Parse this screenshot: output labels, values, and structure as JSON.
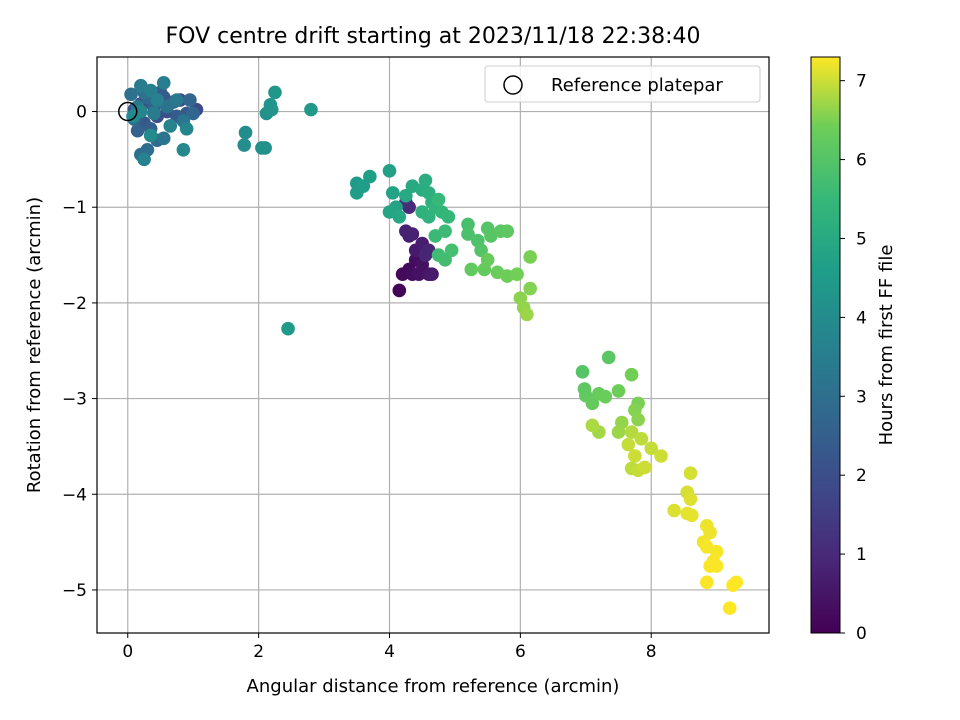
{
  "chart_data": {
    "type": "scatter",
    "title": "FOV centre drift starting at 2023/11/18 22:38:40",
    "xlabel": "Angular distance from reference (arcmin)",
    "ylabel": "Rotation from reference (arcmin)",
    "xlim": [
      -0.47,
      9.8
    ],
    "ylim": [
      -5.45,
      0.57
    ],
    "x_ticks": [
      0,
      2,
      4,
      6,
      8
    ],
    "y_ticks": [
      0,
      -1,
      -2,
      -3,
      -4,
      -5
    ],
    "x_tick_labels": [
      "0",
      "2",
      "4",
      "6",
      "8"
    ],
    "y_tick_labels": [
      "0",
      "−1",
      "−2",
      "−3",
      "−4",
      "−5"
    ],
    "grid": true,
    "legend": {
      "position": "top-right",
      "entries": [
        "Reference platepar"
      ]
    },
    "reference_point": {
      "x": 0,
      "y": 0
    },
    "colorbar": {
      "label": "Hours from first FF file",
      "range": [
        0,
        7.3
      ],
      "ticks": [
        0,
        1,
        2,
        3,
        4,
        5,
        6,
        7
      ],
      "tick_labels": [
        "0",
        "1",
        "2",
        "3",
        "4",
        "5",
        "6",
        "7"
      ],
      "colormap": "viridis"
    },
    "points": [
      [
        4.15,
        -1.87,
        0.1
      ],
      [
        4.2,
        -1.7,
        0.2
      ],
      [
        4.3,
        -1.65,
        0.2
      ],
      [
        4.35,
        -1.7,
        0.3
      ],
      [
        4.4,
        -1.55,
        0.3
      ],
      [
        4.45,
        -1.7,
        0.4
      ],
      [
        4.5,
        -1.6,
        0.4
      ],
      [
        4.55,
        -1.5,
        0.5
      ],
      [
        4.6,
        -1.7,
        0.5
      ],
      [
        4.65,
        -1.7,
        0.6
      ],
      [
        4.4,
        -1.45,
        0.6
      ],
      [
        4.5,
        -1.38,
        0.7
      ],
      [
        4.3,
        -1.3,
        0.7
      ],
      [
        4.25,
        -1.25,
        0.8
      ],
      [
        4.35,
        -1.28,
        0.8
      ],
      [
        4.55,
        -1.5,
        0.9
      ],
      [
        4.6,
        -1.45,
        0.9
      ],
      [
        4.3,
        -1.0,
        1.0
      ],
      [
        4.25,
        -0.95,
        1.1
      ],
      [
        0.8,
        0.12,
        1.8
      ],
      [
        1.05,
        0.02,
        1.9
      ],
      [
        0.6,
        0.0,
        2.0
      ],
      [
        0.45,
        -0.05,
        2.05
      ],
      [
        0.3,
        0.1,
        2.1
      ],
      [
        0.2,
        0.08,
        2.15
      ],
      [
        0.1,
        0.02,
        2.2
      ],
      [
        0.25,
        -0.12,
        2.25
      ],
      [
        0.55,
        0.15,
        2.3
      ],
      [
        0.9,
        -0.02,
        2.35
      ],
      [
        0.75,
        -0.05,
        2.4
      ],
      [
        0.5,
        0.2,
        2.45
      ],
      [
        0.35,
        -0.18,
        2.5
      ],
      [
        0.15,
        -0.2,
        2.55
      ],
      [
        0.4,
        0.05,
        2.6
      ],
      [
        0.7,
        0.1,
        2.65
      ],
      [
        0.95,
        0.12,
        2.7
      ],
      [
        1.0,
        -0.02,
        2.75
      ],
      [
        0.3,
        0.15,
        2.8
      ],
      [
        0.1,
        -0.08,
        2.85
      ],
      [
        0.45,
        -0.3,
        2.9
      ],
      [
        0.3,
        -0.4,
        2.95
      ],
      [
        0.2,
        -0.45,
        3.0
      ],
      [
        0.05,
        0.18,
        3.05
      ],
      [
        0.25,
        0.2,
        3.1
      ],
      [
        0.6,
        0.05,
        3.15
      ],
      [
        0.55,
        -0.28,
        3.2
      ],
      [
        0.85,
        -0.1,
        3.25
      ],
      [
        0.75,
        0.12,
        3.3
      ],
      [
        0.15,
        0.05,
        3.35
      ],
      [
        0.4,
        -0.02,
        3.4
      ],
      [
        0.2,
        0.27,
        3.45
      ],
      [
        0.55,
        0.3,
        3.5
      ],
      [
        0.35,
        0.22,
        3.55
      ],
      [
        0.45,
        0.12,
        3.6
      ],
      [
        0.25,
        -0.5,
        3.65
      ],
      [
        0.65,
        -0.15,
        3.7
      ],
      [
        0.9,
        -0.18,
        3.75
      ],
      [
        0.2,
        0.0,
        3.8
      ],
      [
        0.85,
        -0.4,
        3.85
      ],
      [
        0.08,
        -0.05,
        3.9
      ],
      [
        0.35,
        -0.25,
        3.95
      ],
      [
        1.8,
        -0.22,
        4.0
      ],
      [
        1.78,
        -0.35,
        4.05
      ],
      [
        2.05,
        -0.38,
        4.1
      ],
      [
        2.1,
        -0.38,
        4.15
      ],
      [
        2.12,
        -0.02,
        4.2
      ],
      [
        2.2,
        0.02,
        4.25
      ],
      [
        2.18,
        0.07,
        4.3
      ],
      [
        2.25,
        0.2,
        4.35
      ],
      [
        2.8,
        0.02,
        4.4
      ],
      [
        2.45,
        -2.27,
        4.45
      ],
      [
        3.5,
        -0.75,
        4.5
      ],
      [
        3.5,
        -0.85,
        4.55
      ],
      [
        3.6,
        -0.78,
        4.6
      ],
      [
        3.7,
        -0.68,
        4.65
      ],
      [
        4.0,
        -0.62,
        4.7
      ],
      [
        4.05,
        -0.85,
        4.75
      ],
      [
        4.1,
        -1.0,
        4.8
      ],
      [
        4.0,
        -1.05,
        4.85
      ],
      [
        4.15,
        -1.1,
        4.9
      ],
      [
        4.25,
        -0.88,
        4.95
      ],
      [
        4.35,
        -0.78,
        5.0
      ],
      [
        4.5,
        -0.82,
        5.05
      ],
      [
        4.55,
        -0.72,
        5.1
      ],
      [
        4.6,
        -0.85,
        5.15
      ],
      [
        4.65,
        -0.95,
        5.2
      ],
      [
        4.5,
        -1.05,
        5.25
      ],
      [
        4.6,
        -1.1,
        5.3
      ],
      [
        4.7,
        -1.0,
        5.35
      ],
      [
        4.8,
        -1.05,
        5.4
      ],
      [
        4.9,
        -1.1,
        5.45
      ],
      [
        4.75,
        -0.92,
        5.5
      ],
      [
        4.7,
        -1.3,
        5.55
      ],
      [
        4.85,
        -1.25,
        5.6
      ],
      [
        4.75,
        -1.5,
        5.65
      ],
      [
        4.85,
        -1.55,
        5.7
      ],
      [
        4.95,
        -1.45,
        5.75
      ],
      [
        5.2,
        -1.18,
        5.8
      ],
      [
        5.2,
        -1.28,
        5.85
      ],
      [
        5.35,
        -1.35,
        5.9
      ],
      [
        5.4,
        -1.45,
        5.95
      ],
      [
        5.5,
        -1.22,
        6.0
      ],
      [
        5.55,
        -1.3,
        6.05
      ],
      [
        5.7,
        -1.25,
        6.1
      ],
      [
        5.8,
        -1.25,
        6.15
      ],
      [
        5.25,
        -1.65,
        6.2
      ],
      [
        5.45,
        -1.65,
        6.25
      ],
      [
        5.5,
        -1.55,
        6.3
      ],
      [
        5.65,
        -1.68,
        6.35
      ],
      [
        5.8,
        -1.72,
        6.4
      ],
      [
        5.95,
        -1.7,
        6.45
      ],
      [
        6.15,
        -1.52,
        6.5
      ],
      [
        6.15,
        -1.85,
        6.55
      ],
      [
        6.0,
        -1.95,
        6.6
      ],
      [
        6.05,
        -2.05,
        6.65
      ],
      [
        6.1,
        -2.12,
        6.7
      ],
      [
        6.95,
        -2.72,
        6.0
      ],
      [
        7.35,
        -2.57,
        6.1
      ],
      [
        6.98,
        -2.9,
        6.15
      ],
      [
        7.0,
        -2.97,
        6.2
      ],
      [
        7.1,
        -3.05,
        6.25
      ],
      [
        7.2,
        -2.95,
        6.3
      ],
      [
        7.3,
        -2.98,
        6.35
      ],
      [
        7.5,
        -2.92,
        6.4
      ],
      [
        7.7,
        -2.75,
        6.45
      ],
      [
        7.8,
        -3.05,
        6.5
      ],
      [
        7.75,
        -3.12,
        6.55
      ],
      [
        7.8,
        -3.22,
        6.6
      ],
      [
        7.55,
        -3.25,
        6.65
      ],
      [
        7.5,
        -3.35,
        6.7
      ],
      [
        7.2,
        -3.35,
        6.75
      ],
      [
        7.1,
        -3.28,
        6.8
      ],
      [
        7.7,
        -3.35,
        6.85
      ],
      [
        7.85,
        -3.42,
        6.9
      ],
      [
        7.65,
        -3.48,
        6.95
      ],
      [
        7.75,
        -3.6,
        7.0
      ],
      [
        8.0,
        -3.52,
        6.95
      ],
      [
        8.15,
        -3.6,
        7.0
      ],
      [
        7.7,
        -3.73,
        6.9
      ],
      [
        7.8,
        -3.75,
        6.95
      ],
      [
        7.9,
        -3.72,
        7.0
      ],
      [
        8.6,
        -3.78,
        7.05
      ],
      [
        8.55,
        -3.98,
        7.05
      ],
      [
        8.6,
        -4.05,
        7.1
      ],
      [
        8.35,
        -4.17,
        7.1
      ],
      [
        8.55,
        -4.2,
        7.15
      ],
      [
        8.62,
        -4.22,
        7.15
      ],
      [
        8.85,
        -4.33,
        7.2
      ],
      [
        8.9,
        -4.4,
        7.2
      ],
      [
        8.8,
        -4.5,
        7.22
      ],
      [
        8.85,
        -4.55,
        7.25
      ],
      [
        9.0,
        -4.6,
        7.25
      ],
      [
        8.95,
        -4.7,
        7.26
      ],
      [
        9.0,
        -4.75,
        7.27
      ],
      [
        8.9,
        -4.75,
        7.28
      ],
      [
        8.85,
        -4.92,
        7.28
      ],
      [
        9.3,
        -4.92,
        7.29
      ],
      [
        9.25,
        -4.95,
        7.3
      ],
      [
        9.2,
        -5.19,
        7.3
      ]
    ]
  }
}
